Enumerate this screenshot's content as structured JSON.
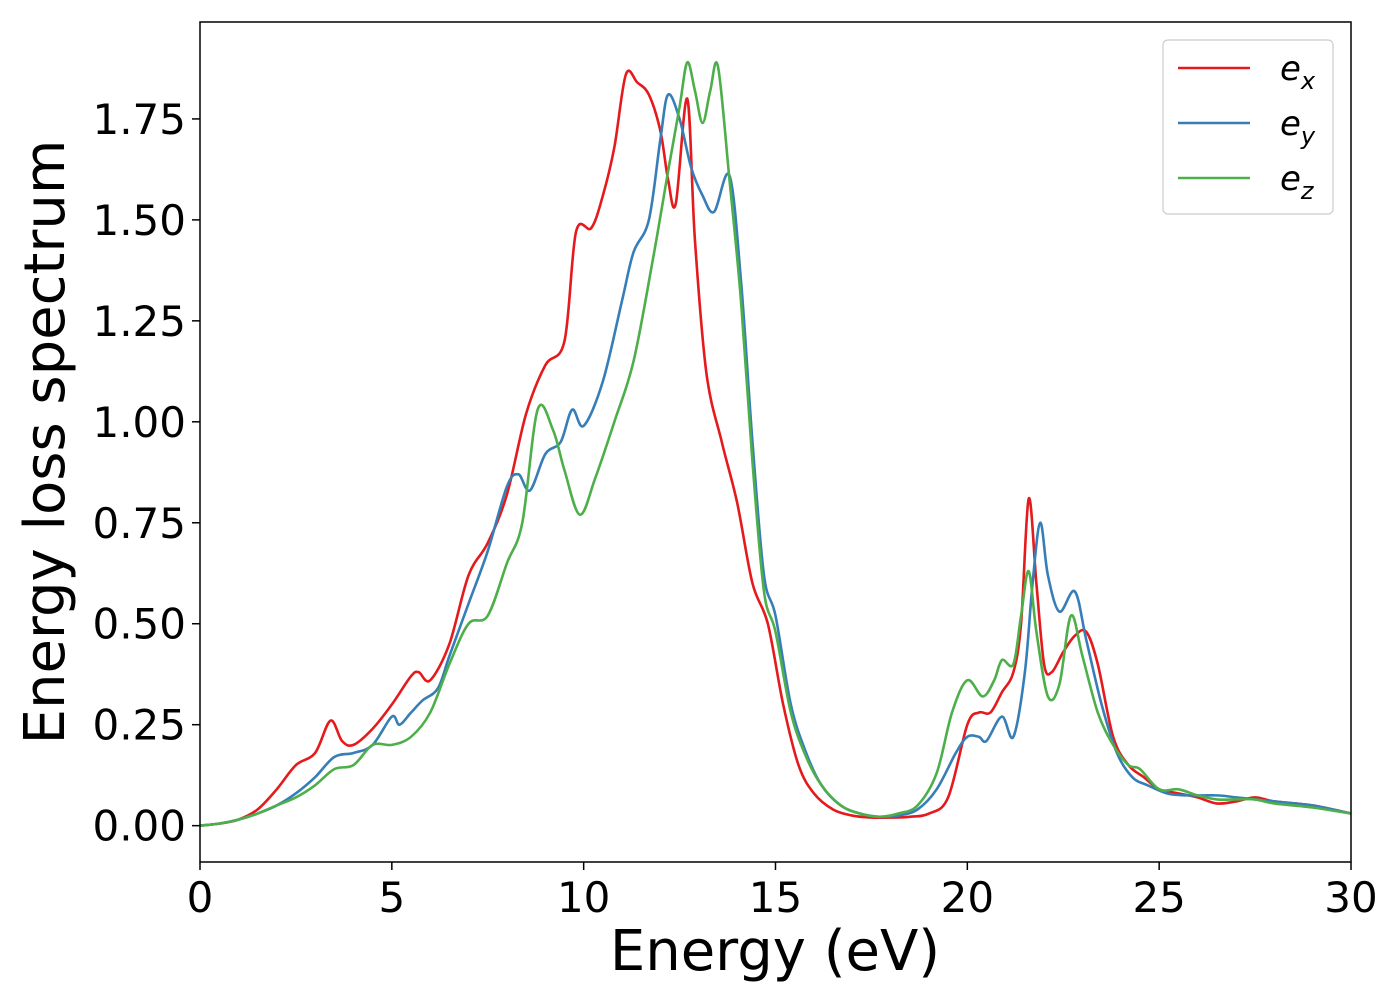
{
  "chart_data": {
    "type": "line",
    "title": "",
    "xlabel": "Energy (eV)",
    "ylabel": "Energy loss spectrum",
    "xlim": [
      0,
      30
    ],
    "ylim": [
      -0.09,
      1.99
    ],
    "xticks": [
      0,
      5,
      10,
      15,
      20,
      25,
      30
    ],
    "xtick_labels": [
      "0",
      "5",
      "10",
      "15",
      "20",
      "25",
      "30"
    ],
    "yticks": [
      0,
      0.25,
      0.5,
      0.75,
      1.0,
      1.25,
      1.5,
      1.75
    ],
    "ytick_labels": [
      "0.00",
      "0.25",
      "0.50",
      "0.75",
      "1.00",
      "1.25",
      "1.50",
      "1.75"
    ],
    "grid": false,
    "legend_position": "top-right",
    "series": [
      {
        "name": "e",
        "subscript": "x",
        "color": "#e41a1c",
        "points": [
          [
            0,
            0
          ],
          [
            0.5,
            0.005
          ],
          [
            1,
            0.015
          ],
          [
            1.5,
            0.04
          ],
          [
            2,
            0.09
          ],
          [
            2.5,
            0.15
          ],
          [
            3,
            0.18
          ],
          [
            3.4,
            0.26
          ],
          [
            3.7,
            0.21
          ],
          [
            4,
            0.2
          ],
          [
            4.5,
            0.24
          ],
          [
            5,
            0.3
          ],
          [
            5.5,
            0.37
          ],
          [
            5.7,
            0.38
          ],
          [
            6,
            0.36
          ],
          [
            6.5,
            0.45
          ],
          [
            7,
            0.62
          ],
          [
            7.5,
            0.7
          ],
          [
            8,
            0.82
          ],
          [
            8.5,
            1.02
          ],
          [
            9,
            1.14
          ],
          [
            9.5,
            1.2
          ],
          [
            9.8,
            1.47
          ],
          [
            10.2,
            1.48
          ],
          [
            10.5,
            1.56
          ],
          [
            10.8,
            1.68
          ],
          [
            11.1,
            1.86
          ],
          [
            11.4,
            1.84
          ],
          [
            11.7,
            1.81
          ],
          [
            12,
            1.72
          ],
          [
            12.2,
            1.6
          ],
          [
            12.4,
            1.54
          ],
          [
            12.7,
            1.8
          ],
          [
            12.9,
            1.45
          ],
          [
            13.2,
            1.12
          ],
          [
            13.6,
            0.95
          ],
          [
            14,
            0.8
          ],
          [
            14.4,
            0.6
          ],
          [
            14.8,
            0.5
          ],
          [
            15.2,
            0.3
          ],
          [
            15.6,
            0.15
          ],
          [
            16,
            0.08
          ],
          [
            16.5,
            0.04
          ],
          [
            17,
            0.025
          ],
          [
            17.5,
            0.02
          ],
          [
            18,
            0.02
          ],
          [
            18.5,
            0.022
          ],
          [
            19,
            0.03
          ],
          [
            19.5,
            0.07
          ],
          [
            20,
            0.25
          ],
          [
            20.3,
            0.28
          ],
          [
            20.6,
            0.28
          ],
          [
            20.9,
            0.33
          ],
          [
            21.2,
            0.38
          ],
          [
            21.4,
            0.5
          ],
          [
            21.6,
            0.81
          ],
          [
            21.8,
            0.6
          ],
          [
            22,
            0.4
          ],
          [
            22.2,
            0.38
          ],
          [
            22.5,
            0.43
          ],
          [
            22.8,
            0.47
          ],
          [
            23.1,
            0.48
          ],
          [
            23.4,
            0.4
          ],
          [
            23.8,
            0.22
          ],
          [
            24.2,
            0.15
          ],
          [
            24.6,
            0.12
          ],
          [
            25,
            0.09
          ],
          [
            25.5,
            0.08
          ],
          [
            26,
            0.07
          ],
          [
            26.5,
            0.055
          ],
          [
            27,
            0.06
          ],
          [
            27.5,
            0.07
          ],
          [
            28,
            0.06
          ],
          [
            29,
            0.05
          ],
          [
            30,
            0.03
          ]
        ]
      },
      {
        "name": "e",
        "subscript": "y",
        "color": "#377eb8",
        "points": [
          [
            0,
            0
          ],
          [
            0.5,
            0.005
          ],
          [
            1,
            0.015
          ],
          [
            1.5,
            0.03
          ],
          [
            2,
            0.05
          ],
          [
            2.5,
            0.08
          ],
          [
            3,
            0.12
          ],
          [
            3.5,
            0.17
          ],
          [
            4,
            0.18
          ],
          [
            4.5,
            0.2
          ],
          [
            5,
            0.27
          ],
          [
            5.2,
            0.25
          ],
          [
            5.5,
            0.28
          ],
          [
            5.8,
            0.31
          ],
          [
            6.2,
            0.34
          ],
          [
            6.5,
            0.42
          ],
          [
            7,
            0.55
          ],
          [
            7.5,
            0.68
          ],
          [
            8,
            0.84
          ],
          [
            8.3,
            0.87
          ],
          [
            8.6,
            0.83
          ],
          [
            9,
            0.92
          ],
          [
            9.4,
            0.95
          ],
          [
            9.7,
            1.03
          ],
          [
            10,
            0.99
          ],
          [
            10.5,
            1.1
          ],
          [
            11,
            1.3
          ],
          [
            11.3,
            1.42
          ],
          [
            11.7,
            1.5
          ],
          [
            12,
            1.7
          ],
          [
            12.2,
            1.81
          ],
          [
            12.5,
            1.75
          ],
          [
            12.8,
            1.63
          ],
          [
            13.1,
            1.56
          ],
          [
            13.4,
            1.52
          ],
          [
            13.8,
            1.61
          ],
          [
            14.1,
            1.35
          ],
          [
            14.4,
            0.95
          ],
          [
            14.7,
            0.62
          ],
          [
            15,
            0.52
          ],
          [
            15.4,
            0.3
          ],
          [
            15.8,
            0.18
          ],
          [
            16.2,
            0.1
          ],
          [
            16.7,
            0.05
          ],
          [
            17.2,
            0.03
          ],
          [
            17.7,
            0.022
          ],
          [
            18.2,
            0.025
          ],
          [
            18.7,
            0.04
          ],
          [
            19.2,
            0.09
          ],
          [
            19.7,
            0.18
          ],
          [
            20,
            0.22
          ],
          [
            20.3,
            0.22
          ],
          [
            20.5,
            0.21
          ],
          [
            20.9,
            0.27
          ],
          [
            21.2,
            0.22
          ],
          [
            21.5,
            0.38
          ],
          [
            21.7,
            0.6
          ],
          [
            21.9,
            0.75
          ],
          [
            22.1,
            0.62
          ],
          [
            22.4,
            0.53
          ],
          [
            22.8,
            0.58
          ],
          [
            23.1,
            0.46
          ],
          [
            23.5,
            0.3
          ],
          [
            23.9,
            0.18
          ],
          [
            24.3,
            0.12
          ],
          [
            24.7,
            0.1
          ],
          [
            25.2,
            0.08
          ],
          [
            25.7,
            0.075
          ],
          [
            26.5,
            0.075
          ],
          [
            27,
            0.07
          ],
          [
            27.5,
            0.065
          ],
          [
            28,
            0.06
          ],
          [
            29,
            0.05
          ],
          [
            30,
            0.03
          ]
        ]
      },
      {
        "name": "e",
        "subscript": "z",
        "color": "#4daf4a",
        "points": [
          [
            0,
            0
          ],
          [
            0.5,
            0.005
          ],
          [
            1,
            0.015
          ],
          [
            1.5,
            0.03
          ],
          [
            2,
            0.05
          ],
          [
            2.5,
            0.07
          ],
          [
            3,
            0.1
          ],
          [
            3.5,
            0.14
          ],
          [
            4,
            0.15
          ],
          [
            4.5,
            0.2
          ],
          [
            5,
            0.2
          ],
          [
            5.5,
            0.22
          ],
          [
            6,
            0.28
          ],
          [
            6.5,
            0.4
          ],
          [
            7,
            0.5
          ],
          [
            7.5,
            0.52
          ],
          [
            8,
            0.65
          ],
          [
            8.4,
            0.75
          ],
          [
            8.8,
            1.03
          ],
          [
            9.2,
            0.98
          ],
          [
            9.5,
            0.88
          ],
          [
            9.9,
            0.77
          ],
          [
            10.3,
            0.86
          ],
          [
            10.8,
            1.0
          ],
          [
            11.3,
            1.15
          ],
          [
            11.8,
            1.4
          ],
          [
            12.2,
            1.62
          ],
          [
            12.5,
            1.78
          ],
          [
            12.7,
            1.89
          ],
          [
            12.9,
            1.82
          ],
          [
            13.1,
            1.74
          ],
          [
            13.3,
            1.82
          ],
          [
            13.5,
            1.88
          ],
          [
            13.8,
            1.6
          ],
          [
            14.1,
            1.3
          ],
          [
            14.4,
            0.9
          ],
          [
            14.7,
            0.58
          ],
          [
            15,
            0.48
          ],
          [
            15.4,
            0.28
          ],
          [
            15.8,
            0.17
          ],
          [
            16.2,
            0.1
          ],
          [
            16.7,
            0.05
          ],
          [
            17.2,
            0.03
          ],
          [
            17.7,
            0.022
          ],
          [
            18.2,
            0.03
          ],
          [
            18.7,
            0.05
          ],
          [
            19.2,
            0.13
          ],
          [
            19.6,
            0.28
          ],
          [
            20,
            0.36
          ],
          [
            20.4,
            0.32
          ],
          [
            20.7,
            0.36
          ],
          [
            20.9,
            0.41
          ],
          [
            21.2,
            0.4
          ],
          [
            21.4,
            0.52
          ],
          [
            21.6,
            0.63
          ],
          [
            21.8,
            0.48
          ],
          [
            22.1,
            0.32
          ],
          [
            22.4,
            0.35
          ],
          [
            22.7,
            0.52
          ],
          [
            23,
            0.42
          ],
          [
            23.4,
            0.28
          ],
          [
            23.8,
            0.2
          ],
          [
            24.2,
            0.15
          ],
          [
            24.5,
            0.14
          ],
          [
            25,
            0.09
          ],
          [
            25.5,
            0.09
          ],
          [
            26,
            0.075
          ],
          [
            26.5,
            0.065
          ],
          [
            27,
            0.065
          ],
          [
            27.5,
            0.065
          ],
          [
            28,
            0.055
          ],
          [
            29,
            0.045
          ],
          [
            30,
            0.03
          ]
        ]
      }
    ]
  }
}
